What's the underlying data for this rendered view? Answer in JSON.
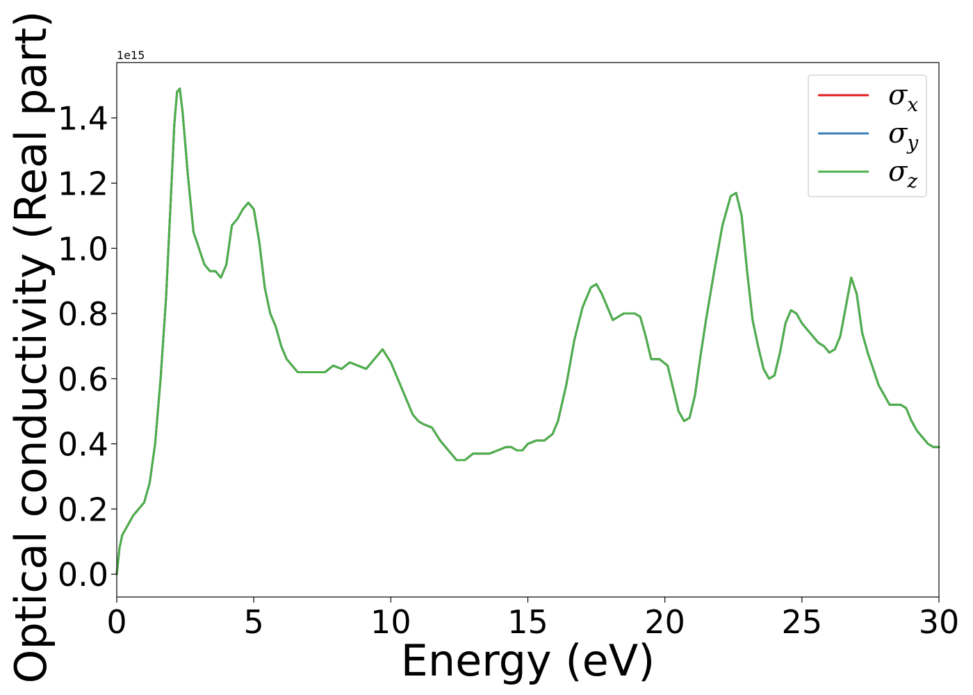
{
  "chart_data": {
    "type": "line",
    "xlabel": "Energy (eV)",
    "ylabel": "Optical conductivity (Real part)",
    "offset_label": "1e15",
    "xlim": [
      0,
      30
    ],
    "ylim": [
      -0.07,
      1.57
    ],
    "xticks": [
      0,
      5,
      10,
      15,
      20,
      25,
      30
    ],
    "xtick_labels": [
      "0",
      "5",
      "10",
      "15",
      "20",
      "25",
      "30"
    ],
    "yticks": [
      0.0,
      0.2,
      0.4,
      0.6,
      0.8,
      1.0,
      1.2,
      1.4
    ],
    "ytick_labels": [
      "0.0",
      "0.2",
      "0.4",
      "0.6",
      "0.8",
      "1.0",
      "1.2",
      "1.4"
    ],
    "grid": false,
    "legend_position": "top-right",
    "x": [
      0,
      0.1,
      0.2,
      0.4,
      0.6,
      0.8,
      1.0,
      1.2,
      1.4,
      1.6,
      1.8,
      2.0,
      2.1,
      2.2,
      2.3,
      2.4,
      2.6,
      2.8,
      3.0,
      3.2,
      3.4,
      3.6,
      3.8,
      4.0,
      4.2,
      4.4,
      4.6,
      4.8,
      5.0,
      5.2,
      5.4,
      5.6,
      5.8,
      6.0,
      6.2,
      6.4,
      6.6,
      6.8,
      7.0,
      7.2,
      7.4,
      7.6,
      7.9,
      8.2,
      8.5,
      8.8,
      9.1,
      9.4,
      9.7,
      10.0,
      10.2,
      10.4,
      10.6,
      10.8,
      11.0,
      11.2,
      11.5,
      11.8,
      12.1,
      12.4,
      12.7,
      13.0,
      13.3,
      13.6,
      13.9,
      14.2,
      14.4,
      14.6,
      14.8,
      15.0,
      15.3,
      15.6,
      15.9,
      16.1,
      16.4,
      16.7,
      17.0,
      17.3,
      17.5,
      17.7,
      17.9,
      18.1,
      18.3,
      18.5,
      18.7,
      18.9,
      19.1,
      19.3,
      19.5,
      19.8,
      20.1,
      20.3,
      20.5,
      20.7,
      20.9,
      21.1,
      21.3,
      21.5,
      21.8,
      22.1,
      22.4,
      22.6,
      22.8,
      23.0,
      23.2,
      23.4,
      23.6,
      23.8,
      24.0,
      24.2,
      24.4,
      24.6,
      24.8,
      25.0,
      25.2,
      25.4,
      25.6,
      25.8,
      26.0,
      26.2,
      26.4,
      26.6,
      26.8,
      27.0,
      27.2,
      27.4,
      27.6,
      27.8,
      28.0,
      28.2,
      28.4,
      28.6,
      28.8,
      29.0,
      29.2,
      29.4,
      29.6,
      29.8,
      30.0
    ],
    "series": [
      {
        "name": "σx",
        "color": "#e41a1c",
        "values": [
          0.0,
          0.08,
          0.12,
          0.15,
          0.18,
          0.2,
          0.22,
          0.28,
          0.4,
          0.6,
          0.85,
          1.2,
          1.38,
          1.48,
          1.49,
          1.42,
          1.22,
          1.05,
          1.0,
          0.95,
          0.93,
          0.93,
          0.91,
          0.95,
          1.07,
          1.09,
          1.12,
          1.14,
          1.12,
          1.02,
          0.88,
          0.8,
          0.76,
          0.7,
          0.66,
          0.64,
          0.62,
          0.62,
          0.62,
          0.62,
          0.62,
          0.62,
          0.64,
          0.63,
          0.65,
          0.64,
          0.63,
          0.66,
          0.69,
          0.65,
          0.61,
          0.57,
          0.53,
          0.49,
          0.47,
          0.46,
          0.45,
          0.41,
          0.38,
          0.35,
          0.35,
          0.37,
          0.37,
          0.37,
          0.38,
          0.39,
          0.39,
          0.38,
          0.38,
          0.4,
          0.41,
          0.41,
          0.43,
          0.47,
          0.58,
          0.72,
          0.82,
          0.88,
          0.89,
          0.86,
          0.82,
          0.78,
          0.79,
          0.8,
          0.8,
          0.8,
          0.79,
          0.73,
          0.66,
          0.66,
          0.64,
          0.57,
          0.5,
          0.47,
          0.48,
          0.55,
          0.67,
          0.78,
          0.93,
          1.07,
          1.16,
          1.17,
          1.1,
          0.93,
          0.78,
          0.7,
          0.63,
          0.6,
          0.61,
          0.68,
          0.77,
          0.81,
          0.8,
          0.77,
          0.75,
          0.73,
          0.71,
          0.7,
          0.68,
          0.69,
          0.73,
          0.82,
          0.91,
          0.86,
          0.74,
          0.68,
          0.63,
          0.58,
          0.55,
          0.52,
          0.52,
          0.52,
          0.51,
          0.47,
          0.44,
          0.42,
          0.4,
          0.39,
          0.39
        ]
      },
      {
        "name": "σy",
        "color": "#377eb8",
        "values": [
          0.0,
          0.08,
          0.12,
          0.15,
          0.18,
          0.2,
          0.22,
          0.28,
          0.4,
          0.6,
          0.85,
          1.2,
          1.38,
          1.48,
          1.49,
          1.42,
          1.22,
          1.05,
          1.0,
          0.95,
          0.93,
          0.93,
          0.91,
          0.95,
          1.07,
          1.09,
          1.12,
          1.14,
          1.12,
          1.02,
          0.88,
          0.8,
          0.76,
          0.7,
          0.66,
          0.64,
          0.62,
          0.62,
          0.62,
          0.62,
          0.62,
          0.62,
          0.64,
          0.63,
          0.65,
          0.64,
          0.63,
          0.66,
          0.69,
          0.65,
          0.61,
          0.57,
          0.53,
          0.49,
          0.47,
          0.46,
          0.45,
          0.41,
          0.38,
          0.35,
          0.35,
          0.37,
          0.37,
          0.37,
          0.38,
          0.39,
          0.39,
          0.38,
          0.38,
          0.4,
          0.41,
          0.41,
          0.43,
          0.47,
          0.58,
          0.72,
          0.82,
          0.88,
          0.89,
          0.86,
          0.82,
          0.78,
          0.79,
          0.8,
          0.8,
          0.8,
          0.79,
          0.73,
          0.66,
          0.66,
          0.64,
          0.57,
          0.5,
          0.47,
          0.48,
          0.55,
          0.67,
          0.78,
          0.93,
          1.07,
          1.16,
          1.17,
          1.1,
          0.93,
          0.78,
          0.7,
          0.63,
          0.6,
          0.61,
          0.68,
          0.77,
          0.81,
          0.8,
          0.77,
          0.75,
          0.73,
          0.71,
          0.7,
          0.68,
          0.69,
          0.73,
          0.82,
          0.91,
          0.86,
          0.74,
          0.68,
          0.63,
          0.58,
          0.55,
          0.52,
          0.52,
          0.52,
          0.51,
          0.47,
          0.44,
          0.42,
          0.4,
          0.39,
          0.39
        ]
      },
      {
        "name": "σz",
        "color": "#4daf4a",
        "values": [
          0.0,
          0.08,
          0.12,
          0.15,
          0.18,
          0.2,
          0.22,
          0.28,
          0.4,
          0.6,
          0.85,
          1.2,
          1.38,
          1.48,
          1.49,
          1.42,
          1.22,
          1.05,
          1.0,
          0.95,
          0.93,
          0.93,
          0.91,
          0.95,
          1.07,
          1.09,
          1.12,
          1.14,
          1.12,
          1.02,
          0.88,
          0.8,
          0.76,
          0.7,
          0.66,
          0.64,
          0.62,
          0.62,
          0.62,
          0.62,
          0.62,
          0.62,
          0.64,
          0.63,
          0.65,
          0.64,
          0.63,
          0.66,
          0.69,
          0.65,
          0.61,
          0.57,
          0.53,
          0.49,
          0.47,
          0.46,
          0.45,
          0.41,
          0.38,
          0.35,
          0.35,
          0.37,
          0.37,
          0.37,
          0.38,
          0.39,
          0.39,
          0.38,
          0.38,
          0.4,
          0.41,
          0.41,
          0.43,
          0.47,
          0.58,
          0.72,
          0.82,
          0.88,
          0.89,
          0.86,
          0.82,
          0.78,
          0.79,
          0.8,
          0.8,
          0.8,
          0.79,
          0.73,
          0.66,
          0.66,
          0.64,
          0.57,
          0.5,
          0.47,
          0.48,
          0.55,
          0.67,
          0.78,
          0.93,
          1.07,
          1.16,
          1.17,
          1.1,
          0.93,
          0.78,
          0.7,
          0.63,
          0.6,
          0.61,
          0.68,
          0.77,
          0.81,
          0.8,
          0.77,
          0.75,
          0.73,
          0.71,
          0.7,
          0.68,
          0.69,
          0.73,
          0.82,
          0.91,
          0.86,
          0.74,
          0.68,
          0.63,
          0.58,
          0.55,
          0.52,
          0.52,
          0.52,
          0.51,
          0.47,
          0.44,
          0.42,
          0.4,
          0.39,
          0.39
        ]
      }
    ],
    "legend": [
      {
        "symbol": "σ",
        "sub": "x",
        "color": "#e41a1c"
      },
      {
        "symbol": "σ",
        "sub": "y",
        "color": "#377eb8"
      },
      {
        "symbol": "σ",
        "sub": "z",
        "color": "#4daf4a"
      }
    ]
  }
}
